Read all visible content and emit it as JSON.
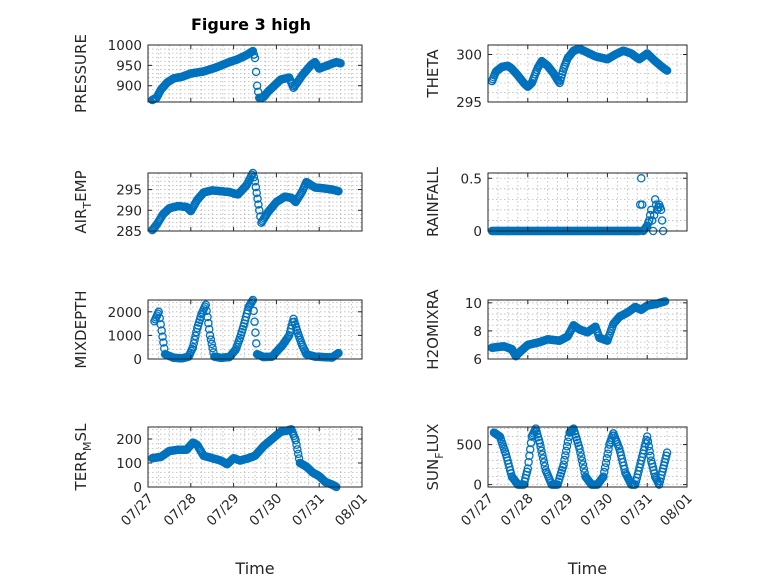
{
  "title": "Figure 3 high",
  "colors": {
    "marker": "#0072BD",
    "axis": "#262626",
    "grid": "#b8b8b8"
  },
  "chart_data": [
    {
      "type": "scatter",
      "ylabel": "PRESSURE",
      "ylim": [
        860,
        1000
      ],
      "yticks": [
        900,
        950,
        1000
      ],
      "xlim": [
        0,
        5
      ],
      "grid": true,
      "knots": [
        [
          0.1,
          865
        ],
        [
          0.2,
          870
        ],
        [
          0.3,
          890
        ],
        [
          0.45,
          908
        ],
        [
          0.6,
          918
        ],
        [
          0.8,
          922
        ],
        [
          1.0,
          930
        ],
        [
          1.3,
          935
        ],
        [
          1.6,
          945
        ],
        [
          1.9,
          958
        ],
        [
          2.1,
          965
        ],
        [
          2.3,
          975
        ],
        [
          2.45,
          985
        ],
        [
          2.5,
          968
        ],
        [
          2.55,
          900
        ],
        [
          2.6,
          870
        ],
        [
          2.7,
          872
        ],
        [
          2.8,
          885
        ],
        [
          3.0,
          905
        ],
        [
          3.1,
          915
        ],
        [
          3.3,
          920
        ],
        [
          3.4,
          895
        ],
        [
          3.6,
          925
        ],
        [
          3.8,
          950
        ],
        [
          3.9,
          958
        ],
        [
          4.0,
          942
        ],
        [
          4.2,
          950
        ],
        [
          4.4,
          958
        ],
        [
          4.5,
          955
        ]
      ]
    },
    {
      "type": "scatter",
      "ylabel": "THETA",
      "ylim": [
        295,
        301
      ],
      "yticks": [
        295,
        300
      ],
      "xlim": [
        0,
        5
      ],
      "grid": true,
      "knots": [
        [
          0.1,
          297.2
        ],
        [
          0.2,
          298.2
        ],
        [
          0.35,
          298.7
        ],
        [
          0.5,
          298.8
        ],
        [
          0.6,
          298.5
        ],
        [
          0.75,
          297.8
        ],
        [
          0.9,
          297
        ],
        [
          1.0,
          296.6
        ],
        [
          1.1,
          297
        ],
        [
          1.25,
          298.6
        ],
        [
          1.35,
          299.3
        ],
        [
          1.5,
          298.8
        ],
        [
          1.65,
          298
        ],
        [
          1.75,
          297.3
        ],
        [
          1.8,
          297
        ],
        [
          1.9,
          298.5
        ],
        [
          2.0,
          299.6
        ],
        [
          2.15,
          300.4
        ],
        [
          2.3,
          300.6
        ],
        [
          2.5,
          300.2
        ],
        [
          2.7,
          299.8
        ],
        [
          2.9,
          299.6
        ],
        [
          3.0,
          299.5
        ],
        [
          3.2,
          300
        ],
        [
          3.4,
          300.4
        ],
        [
          3.6,
          300.1
        ],
        [
          3.8,
          299.5
        ],
        [
          4.0,
          300.1
        ],
        [
          4.2,
          299.3
        ],
        [
          4.4,
          298.6
        ],
        [
          4.5,
          298.3
        ]
      ]
    },
    {
      "type": "scatter",
      "ylabel": "AIR_TEMP",
      "ylim": [
        285,
        299
      ],
      "yticks": [
        285,
        290,
        295
      ],
      "xlim": [
        0,
        5
      ],
      "grid": true,
      "knots": [
        [
          0.1,
          285.2
        ],
        [
          0.2,
          286.5
        ],
        [
          0.35,
          289
        ],
        [
          0.5,
          290.5
        ],
        [
          0.7,
          291
        ],
        [
          0.9,
          290.8
        ],
        [
          1.0,
          289.8
        ],
        [
          1.15,
          292.5
        ],
        [
          1.3,
          294.3
        ],
        [
          1.5,
          294.8
        ],
        [
          1.7,
          294.6
        ],
        [
          1.9,
          294.4
        ],
        [
          2.1,
          293.8
        ],
        [
          2.3,
          296
        ],
        [
          2.45,
          299
        ],
        [
          2.5,
          297
        ],
        [
          2.6,
          290
        ],
        [
          2.65,
          287
        ],
        [
          2.8,
          289.5
        ],
        [
          3.0,
          292
        ],
        [
          3.2,
          293.3
        ],
        [
          3.35,
          293
        ],
        [
          3.45,
          292
        ],
        [
          3.6,
          294.5
        ],
        [
          3.7,
          296.8
        ],
        [
          3.9,
          295.5
        ],
        [
          4.1,
          295.3
        ],
        [
          4.3,
          295
        ],
        [
          4.45,
          294.6
        ]
      ]
    },
    {
      "type": "scatter",
      "ylabel": "RAINFALL",
      "ylim": [
        0,
        0.55
      ],
      "yticks": [
        0,
        0.5
      ],
      "xlim": [
        0,
        5
      ],
      "grid": true,
      "knots": [
        [
          0.1,
          0
        ],
        [
          3.8,
          0
        ],
        [
          3.85,
          0.5
        ],
        [
          3.9,
          0
        ],
        [
          4.0,
          0.05
        ],
        [
          4.05,
          0.1
        ],
        [
          4.1,
          0.2
        ],
        [
          4.15,
          0
        ],
        [
          4.2,
          0.3
        ],
        [
          4.25,
          0.2
        ],
        [
          4.3,
          0.25
        ],
        [
          4.35,
          0.2
        ],
        [
          4.4,
          0
        ]
      ]
    },
    {
      "type": "scatter",
      "ylabel": "MIXDEPTH",
      "ylim": [
        0,
        2500
      ],
      "yticks": [
        0,
        1000,
        2000
      ],
      "xlim": [
        0,
        5
      ],
      "grid": true,
      "knots": [
        [
          0.15,
          1600
        ],
        [
          0.25,
          2000
        ],
        [
          0.32,
          1200
        ],
        [
          0.4,
          200
        ],
        [
          0.6,
          50
        ],
        [
          0.8,
          30
        ],
        [
          0.95,
          100
        ],
        [
          1.05,
          500
        ],
        [
          1.15,
          1300
        ],
        [
          1.25,
          1900
        ],
        [
          1.35,
          2300
        ],
        [
          1.45,
          1000
        ],
        [
          1.55,
          100
        ],
        [
          1.7,
          50
        ],
        [
          1.9,
          80
        ],
        [
          2.05,
          400
        ],
        [
          2.15,
          900
        ],
        [
          2.25,
          1500
        ],
        [
          2.35,
          2200
        ],
        [
          2.45,
          2500
        ],
        [
          2.55,
          200
        ],
        [
          2.7,
          80
        ],
        [
          2.9,
          100
        ],
        [
          3.0,
          300
        ],
        [
          3.15,
          600
        ],
        [
          3.3,
          1000
        ],
        [
          3.4,
          1700
        ],
        [
          3.5,
          1100
        ],
        [
          3.6,
          600
        ],
        [
          3.7,
          200
        ],
        [
          3.9,
          100
        ],
        [
          4.1,
          80
        ],
        [
          4.3,
          60
        ],
        [
          4.45,
          250
        ]
      ]
    },
    {
      "type": "scatter",
      "ylabel": "H2OMIXRA",
      "ylim": [
        6,
        10.2
      ],
      "yticks": [
        6,
        8,
        10
      ],
      "xlim": [
        0,
        5
      ],
      "grid": true,
      "knots": [
        [
          0.1,
          6.8
        ],
        [
          0.4,
          6.9
        ],
        [
          0.6,
          6.7
        ],
        [
          0.7,
          6.2
        ],
        [
          0.8,
          6.5
        ],
        [
          1.0,
          7
        ],
        [
          1.3,
          7.2
        ],
        [
          1.5,
          7.4
        ],
        [
          1.8,
          7.3
        ],
        [
          2.0,
          7.6
        ],
        [
          2.15,
          8.4
        ],
        [
          2.3,
          8.1
        ],
        [
          2.5,
          7.9
        ],
        [
          2.7,
          8.3
        ],
        [
          2.8,
          7.5
        ],
        [
          3.0,
          7.3
        ],
        [
          3.15,
          8.5
        ],
        [
          3.3,
          9
        ],
        [
          3.5,
          9.3
        ],
        [
          3.7,
          9.7
        ],
        [
          3.85,
          9.5
        ],
        [
          4.0,
          9.8
        ],
        [
          4.2,
          9.9
        ],
        [
          4.45,
          10.1
        ]
      ]
    },
    {
      "type": "scatter",
      "ylabel": "TERR_MSL",
      "ylim": [
        0,
        250
      ],
      "yticks": [
        0,
        100,
        200
      ],
      "xlim": [
        0,
        5
      ],
      "grid": true,
      "knots": [
        [
          0.1,
          120
        ],
        [
          0.3,
          125
        ],
        [
          0.5,
          150
        ],
        [
          0.7,
          155
        ],
        [
          0.9,
          155
        ],
        [
          1.05,
          185
        ],
        [
          1.15,
          175
        ],
        [
          1.3,
          130
        ],
        [
          1.5,
          120
        ],
        [
          1.7,
          110
        ],
        [
          1.85,
          95
        ],
        [
          2.0,
          120
        ],
        [
          2.15,
          110
        ],
        [
          2.35,
          120
        ],
        [
          2.5,
          130
        ],
        [
          2.7,
          170
        ],
        [
          2.9,
          200
        ],
        [
          3.1,
          230
        ],
        [
          3.25,
          235
        ],
        [
          3.35,
          240
        ],
        [
          3.45,
          195
        ],
        [
          3.55,
          100
        ],
        [
          3.7,
          85
        ],
        [
          3.85,
          60
        ],
        [
          4.0,
          45
        ],
        [
          4.15,
          20
        ],
        [
          4.3,
          10
        ],
        [
          4.4,
          0
        ]
      ]
    },
    {
      "type": "scatter",
      "ylabel": "SUN_FLUX",
      "ylim": [
        -30,
        720
      ],
      "yticks": [
        0,
        500
      ],
      "xlim": [
        0,
        5
      ],
      "grid": true,
      "knots": [
        [
          0.15,
          650
        ],
        [
          0.3,
          600
        ],
        [
          0.45,
          380
        ],
        [
          0.6,
          100
        ],
        [
          0.75,
          0
        ],
        [
          0.9,
          0
        ],
        [
          1.0,
          200
        ],
        [
          1.1,
          600
        ],
        [
          1.2,
          700
        ],
        [
          1.3,
          520
        ],
        [
          1.45,
          180
        ],
        [
          1.6,
          0
        ],
        [
          1.75,
          0
        ],
        [
          1.9,
          250
        ],
        [
          2.05,
          650
        ],
        [
          2.15,
          700
        ],
        [
          2.3,
          450
        ],
        [
          2.45,
          100
        ],
        [
          2.6,
          0
        ],
        [
          2.75,
          0
        ],
        [
          2.9,
          100
        ],
        [
          3.05,
          500
        ],
        [
          3.15,
          640
        ],
        [
          3.3,
          450
        ],
        [
          3.45,
          150
        ],
        [
          3.6,
          0
        ],
        [
          3.7,
          0
        ],
        [
          3.85,
          300
        ],
        [
          4.0,
          600
        ],
        [
          4.1,
          300
        ],
        [
          4.2,
          100
        ],
        [
          4.3,
          0
        ],
        [
          4.4,
          200
        ],
        [
          4.5,
          400
        ]
      ]
    }
  ],
  "xticklabels": [
    "07/27",
    "07/28",
    "07/29",
    "07/30",
    "07/31",
    "08/01"
  ],
  "xlabel": "Time",
  "ylabels_display": [
    {
      "main": "PRESSURE"
    },
    {
      "main": "THETA"
    },
    {
      "main": "AIR",
      "sub": "T",
      "rest": "EMP"
    },
    {
      "main": "RAINFALL"
    },
    {
      "main": "MIXDEPTH"
    },
    {
      "main": "H2OMIXRA"
    },
    {
      "main": "TERR",
      "sub": "M",
      "rest": "SL"
    },
    {
      "main": "SUN",
      "sub": "F",
      "rest": "LUX"
    }
  ]
}
